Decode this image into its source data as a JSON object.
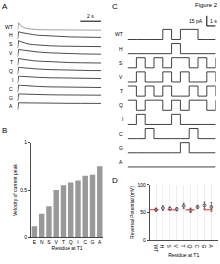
{
  "figure_title": "Figure 2",
  "chart_data": [
    {
      "panel": "A",
      "type": "traces",
      "tick_labels": false,
      "line_style": "solid",
      "x": [
        0,
        0.1,
        0.3,
        0.6,
        1,
        1.5,
        2,
        3,
        4,
        5,
        6,
        7,
        8
      ],
      "xlim": [
        0,
        8
      ],
      "ylim": [
        -0.1,
        1.1
      ],
      "scale_bars": [
        {
          "value": 2,
          "label": "2 s",
          "axis": "x"
        }
      ],
      "series": [
        {
          "name": "WT",
          "color": "#888888",
          "values": [
            0,
            1,
            0.6,
            0.35,
            0.2,
            0.12,
            0.08,
            0.05,
            0.03,
            0.02,
            0.02,
            0.01,
            0.01
          ]
        },
        {
          "name": "H",
          "color": "#222222",
          "values": [
            0,
            1,
            0.9,
            0.8,
            0.7,
            0.6,
            0.52,
            0.42,
            0.35,
            0.3,
            0.27,
            0.25,
            0.23
          ]
        },
        {
          "name": "S",
          "color": "#222222",
          "values": [
            0,
            1,
            0.85,
            0.7,
            0.55,
            0.45,
            0.38,
            0.3,
            0.25,
            0.22,
            0.2,
            0.19,
            0.18
          ]
        },
        {
          "name": "V",
          "color": "#222222",
          "values": [
            0,
            1,
            0.95,
            0.88,
            0.8,
            0.72,
            0.65,
            0.55,
            0.48,
            0.43,
            0.4,
            0.38,
            0.36
          ]
        },
        {
          "name": "T",
          "color": "#222222",
          "values": [
            0,
            1,
            0.92,
            0.84,
            0.76,
            0.68,
            0.62,
            0.53,
            0.47,
            0.43,
            0.4,
            0.38,
            0.37
          ]
        },
        {
          "name": "Q",
          "color": "#222222",
          "values": [
            0,
            1,
            0.95,
            0.9,
            0.85,
            0.8,
            0.75,
            0.68,
            0.63,
            0.6,
            0.57,
            0.55,
            0.54
          ]
        },
        {
          "name": "I",
          "color": "#222222",
          "values": [
            0,
            1,
            0.97,
            0.93,
            0.9,
            0.86,
            0.83,
            0.78,
            0.75,
            0.72,
            0.7,
            0.68,
            0.67
          ]
        },
        {
          "name": "C",
          "color": "#222222",
          "values": [
            0,
            1,
            0.96,
            0.92,
            0.88,
            0.84,
            0.8,
            0.75,
            0.72,
            0.7,
            0.68,
            0.67,
            0.66
          ]
        },
        {
          "name": "G",
          "color": "#222222",
          "values": [
            0,
            1,
            0.98,
            0.96,
            0.94,
            0.92,
            0.9,
            0.88,
            0.86,
            0.85,
            0.84,
            0.83,
            0.82
          ]
        },
        {
          "name": "A",
          "color": "#222222",
          "values": [
            0,
            1,
            0.99,
            0.98,
            0.97,
            0.96,
            0.95,
            0.94,
            0.93,
            0.92,
            0.92,
            0.91,
            0.91
          ]
        }
      ]
    },
    {
      "panel": "B",
      "type": "bar",
      "color": "#999999",
      "grid": false,
      "y_label": "Velocity of current peak",
      "x_label": "Residue at T1",
      "categories": [
        "E",
        "N",
        "S",
        "V",
        "T",
        "Q",
        "I",
        "C",
        "G",
        "A"
      ],
      "values": [
        0.12,
        0.25,
        0.33,
        0.5,
        0.55,
        0.58,
        0.6,
        0.65,
        0.66,
        0.75
      ],
      "ylim": [
        0,
        1
      ],
      "yticks": [
        0,
        0.5,
        1
      ]
    },
    {
      "panel": "C",
      "type": "traces",
      "tick_labels": false,
      "line_style": "step",
      "x": [
        0,
        1,
        2,
        3,
        4,
        5,
        6,
        7,
        8,
        9,
        10
      ],
      "xlim": [
        0,
        10
      ],
      "ylim": [
        -3,
        18
      ],
      "scale_bars": [
        {
          "value": 1,
          "label": "1 s",
          "axis": "x"
        },
        {
          "value": 15,
          "label": "15 pA",
          "axis": "y"
        }
      ],
      "series": [
        {
          "name": "WT",
          "color": "#111111",
          "values": [
            0,
            0,
            0,
            0,
            15,
            0,
            15,
            15,
            0,
            0,
            0
          ]
        },
        {
          "name": "H",
          "color": "#111111",
          "values": [
            0,
            0,
            0,
            0,
            0,
            15,
            0,
            0,
            0,
            0,
            0
          ]
        },
        {
          "name": "S",
          "color": "#111111",
          "values": [
            0,
            15,
            0,
            15,
            0,
            15,
            15,
            0,
            15,
            0,
            15
          ]
        },
        {
          "name": "V",
          "color": "#111111",
          "values": [
            0,
            15,
            0,
            0,
            15,
            0,
            15,
            0,
            0,
            15,
            0
          ]
        },
        {
          "name": "T",
          "color": "#111111",
          "values": [
            15,
            0,
            15,
            0,
            15,
            0,
            0,
            15,
            0,
            15,
            0
          ]
        },
        {
          "name": "Q",
          "color": "#111111",
          "values": [
            15,
            0,
            15,
            15,
            0,
            15,
            0,
            15,
            15,
            0,
            15
          ]
        },
        {
          "name": "I",
          "color": "#111111",
          "values": [
            0,
            15,
            0,
            0,
            0,
            15,
            0,
            0,
            0,
            0,
            0
          ]
        },
        {
          "name": "C",
          "color": "#111111",
          "values": [
            0,
            0,
            15,
            0,
            0,
            0,
            0,
            15,
            0,
            0,
            0
          ]
        },
        {
          "name": "G",
          "color": "#111111",
          "values": [
            0,
            0,
            0,
            0,
            0,
            0,
            15,
            0,
            0,
            0,
            0
          ]
        },
        {
          "name": "A",
          "color": "#111111",
          "values": [
            0,
            0,
            0,
            0,
            0,
            0,
            0,
            0,
            0,
            0,
            0
          ]
        }
      ]
    },
    {
      "panel": "D",
      "type": "scatter",
      "marker": "circle-open",
      "color": "#333333",
      "y_label": "Reversal Potential (mV)",
      "x_label": "Residue at T1",
      "categories": [
        "WT",
        "H",
        "S",
        "V",
        "T",
        "Q",
        "C",
        "G",
        "A"
      ],
      "values": [
        55,
        58,
        57,
        56,
        62,
        54,
        60,
        63,
        60
      ],
      "errors": [
        3,
        4,
        3,
        3,
        5,
        4,
        3,
        6,
        8
      ],
      "reference": {
        "value": 55,
        "color": "#e03030",
        "line_style": "dash"
      },
      "ylim": [
        0,
        100
      ],
      "yticks": [
        0,
        50,
        100
      ]
    }
  ]
}
